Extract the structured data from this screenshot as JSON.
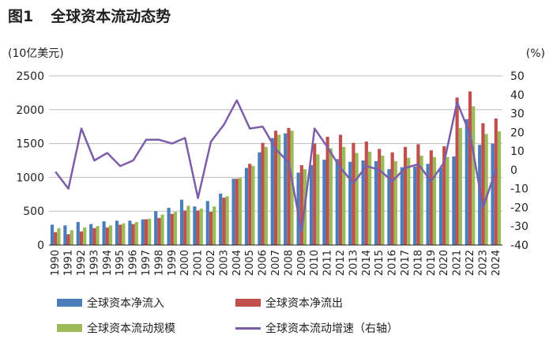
{
  "figure": {
    "label": "图1",
    "title": "全球资本流动态势"
  },
  "chart_data": {
    "type": "bar",
    "left_axis_unit": "(10亿美元)",
    "right_axis_unit": "(%)",
    "left_ylim": [
      0,
      2500
    ],
    "left_yticks": [
      "0",
      "500",
      "1000",
      "1500",
      "2000",
      "2500"
    ],
    "right_ylim": [
      -40,
      50
    ],
    "right_yticks": [
      "-40",
      "-30",
      "-20",
      "-10",
      "0",
      "10",
      "20",
      "30",
      "40",
      "50"
    ],
    "categories": [
      "1990",
      "1991",
      "1992",
      "1993",
      "1994",
      "1995",
      "1996",
      "1997",
      "1998",
      "1999",
      "2000",
      "2001",
      "2002",
      "2003",
      "2004",
      "2005",
      "2006",
      "2007",
      "2008",
      "2009",
      "2010",
      "2011",
      "2012",
      "2013",
      "2014",
      "2015",
      "2016",
      "2017",
      "2018",
      "2019",
      "2020",
      "2021",
      "2022",
      "2023",
      "2024"
    ],
    "series": [
      {
        "name": "全球资本净流入",
        "kind": "bar",
        "color": "#4a7ebb",
        "values": [
          300,
          290,
          340,
          310,
          350,
          360,
          360,
          380,
          500,
          550,
          670,
          570,
          650,
          760,
          980,
          1140,
          1370,
          1580,
          1650,
          1070,
          1180,
          1260,
          1270,
          1230,
          1250,
          1240,
          1120,
          1150,
          1160,
          1200,
          1140,
          1310,
          1860,
          1480,
          1500
        ]
      },
      {
        "name": "全球资本净流出",
        "kind": "bar",
        "color": "#c0504d",
        "values": [
          190,
          160,
          200,
          250,
          260,
          300,
          310,
          380,
          400,
          460,
          510,
          510,
          490,
          700,
          980,
          1200,
          1510,
          1690,
          1730,
          1180,
          1500,
          1600,
          1630,
          1510,
          1530,
          1420,
          1370,
          1450,
          1490,
          1400,
          1460,
          2180,
          2270,
          1800,
          1870
        ]
      },
      {
        "name": "全球资本流动规模",
        "kind": "bar",
        "color": "#9bbb59",
        "values": [
          250,
          220,
          260,
          280,
          290,
          320,
          340,
          390,
          450,
          490,
          580,
          540,
          570,
          720,
          990,
          1170,
          1450,
          1630,
          1690,
          1120,
          1340,
          1430,
          1450,
          1360,
          1380,
          1320,
          1240,
          1290,
          1320,
          1300,
          1300,
          1730,
          2050,
          1640,
          1680
        ]
      },
      {
        "name": "全球资本流动增速（右轴）",
        "kind": "line",
        "axis": "right",
        "color": "#7b5ea7",
        "values": [
          -1,
          -10,
          22,
          5,
          9,
          2,
          5,
          16,
          16,
          14,
          17,
          -15,
          15,
          24,
          37,
          22,
          23,
          11,
          4,
          -33,
          22,
          12,
          1,
          -7,
          2,
          0,
          -6,
          1,
          3,
          -6,
          4,
          36,
          19,
          -20,
          0
        ]
      }
    ]
  }
}
